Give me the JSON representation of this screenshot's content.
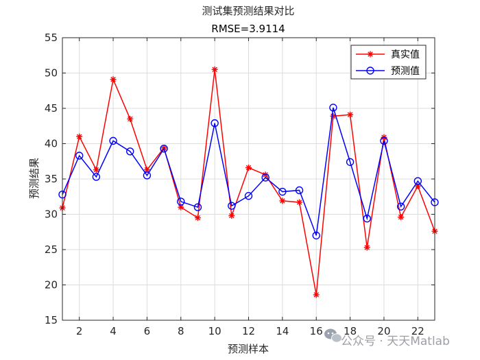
{
  "chart_data": {
    "type": "line",
    "title": "测试集预测结果对比",
    "subtitle": "RMSE=3.9114",
    "xlabel": "预测样本",
    "ylabel": "预测结果",
    "xlim": [
      1,
      23
    ],
    "ylim": [
      15,
      55
    ],
    "x_ticks": [
      2,
      4,
      6,
      8,
      10,
      12,
      14,
      16,
      18,
      20,
      22
    ],
    "y_ticks": [
      15,
      20,
      25,
      30,
      35,
      40,
      45,
      50,
      55
    ],
    "grid": true,
    "legend_position": "top-right",
    "x": [
      1,
      2,
      3,
      4,
      5,
      6,
      7,
      8,
      9,
      10,
      11,
      12,
      13,
      14,
      15,
      16,
      17,
      18,
      19,
      20,
      21,
      22,
      23
    ],
    "series": [
      {
        "name": "真实值",
        "color": "#ff0000",
        "marker": "asterisk",
        "values": [
          30.9,
          41.0,
          36.3,
          49.1,
          43.5,
          36.3,
          39.4,
          31.0,
          29.5,
          50.5,
          29.8,
          36.6,
          35.6,
          31.9,
          31.7,
          18.6,
          43.9,
          44.1,
          25.3,
          40.9,
          29.6,
          34.0,
          27.6
        ]
      },
      {
        "name": "预测值",
        "color": "#0000ff",
        "marker": "circle",
        "values": [
          32.8,
          38.3,
          35.3,
          40.4,
          38.9,
          35.5,
          39.3,
          31.8,
          31.0,
          42.9,
          31.2,
          32.6,
          35.2,
          33.2,
          33.4,
          27.0,
          45.1,
          37.4,
          29.4,
          40.4,
          31.1,
          34.7,
          31.7
        ]
      }
    ]
  },
  "watermark": {
    "text": "公众号 · 天天Matlab",
    "icon": "wechat-icon"
  }
}
